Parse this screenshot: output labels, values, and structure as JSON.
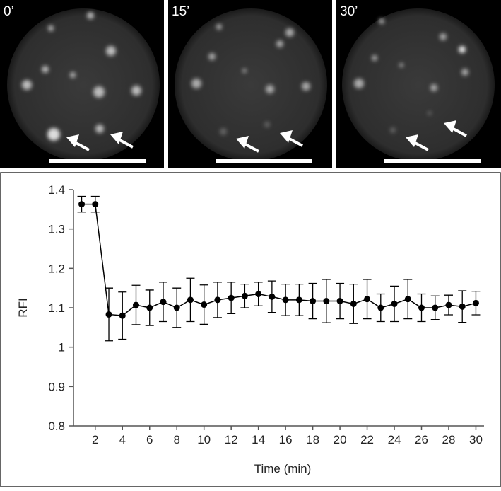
{
  "panels": [
    {
      "label": "0’"
    },
    {
      "label": "15’"
    },
    {
      "label": "30’"
    }
  ],
  "chart_data": {
    "type": "line",
    "x_label": "Time (min)",
    "y_label": "RFI",
    "x": [
      1,
      2,
      3,
      4,
      5,
      6,
      7,
      8,
      9,
      10,
      11,
      12,
      13,
      14,
      15,
      16,
      17,
      18,
      19,
      20,
      21,
      22,
      23,
      24,
      25,
      26,
      27,
      28,
      29,
      30
    ],
    "series": [
      {
        "color": "#000000",
        "values": [
          1.363,
          1.363,
          1.083,
          1.08,
          1.107,
          1.1,
          1.115,
          1.1,
          1.12,
          1.108,
          1.12,
          1.125,
          1.13,
          1.135,
          1.128,
          1.12,
          1.12,
          1.117,
          1.117,
          1.117,
          1.11,
          1.122,
          1.1,
          1.11,
          1.122,
          1.1,
          1.1,
          1.107,
          1.103,
          1.112
        ],
        "errors": [
          0.02,
          0.02,
          0.067,
          0.06,
          0.05,
          0.045,
          0.05,
          0.05,
          0.055,
          0.05,
          0.045,
          0.04,
          0.03,
          0.03,
          0.04,
          0.04,
          0.04,
          0.045,
          0.055,
          0.045,
          0.05,
          0.05,
          0.035,
          0.045,
          0.05,
          0.035,
          0.03,
          0.025,
          0.04,
          0.03
        ]
      }
    ],
    "xlim": [
      0.4,
      30.6
    ],
    "xticks": [
      2,
      4,
      6,
      8,
      10,
      12,
      14,
      16,
      18,
      20,
      22,
      24,
      26,
      28,
      30
    ],
    "ylim": [
      0.8,
      1.4
    ],
    "yticks": [
      0.8,
      0.9,
      1,
      1.1,
      1.2,
      1.3,
      1.4
    ]
  }
}
